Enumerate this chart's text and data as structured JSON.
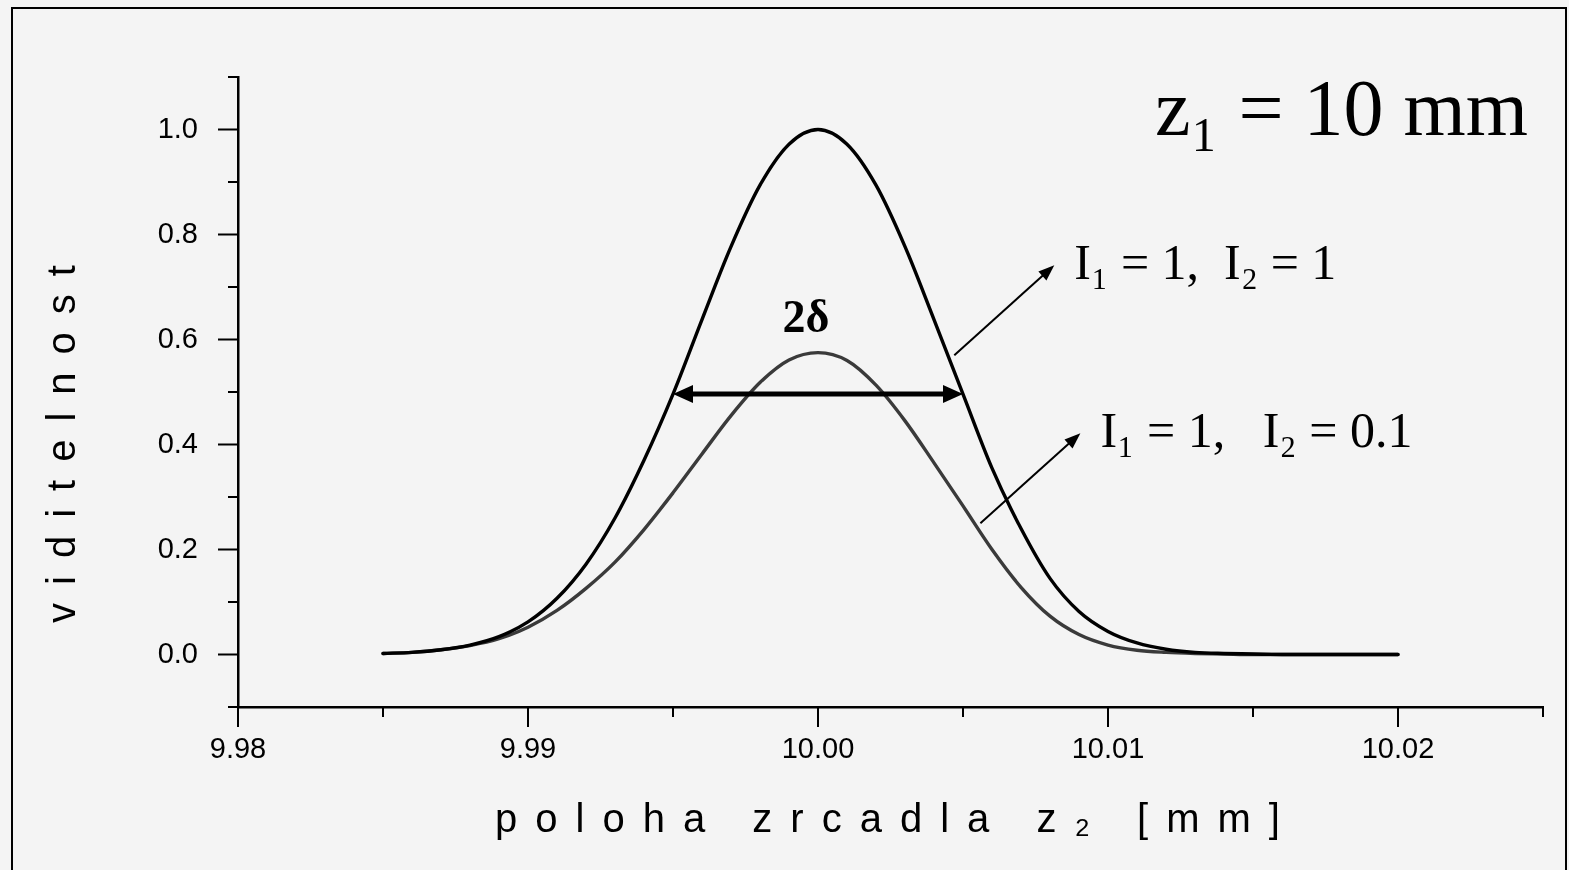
{
  "chart_data": {
    "type": "line",
    "xlabel": "poloha zrcadla z₂ [mm]",
    "ylabel": "viditelnost",
    "x": [
      9.985,
      9.986,
      9.987,
      9.988,
      9.989,
      9.99,
      9.991,
      9.992,
      9.993,
      9.994,
      9.995,
      9.996,
      9.997,
      9.998,
      9.999,
      10,
      10.001,
      10.002,
      10.003,
      10.004,
      10.005,
      10.006,
      10.007,
      10.008,
      10.009,
      10.01,
      10.011,
      10.012,
      10.013,
      10.014,
      10.015,
      10.016,
      10.017,
      10.018,
      10.019,
      10.02
    ],
    "series": [
      {
        "color": "#000000",
        "values": [
          0.002,
          0.004,
          0.009,
          0.018,
          0.034,
          0.062,
          0.107,
          0.172,
          0.26,
          0.37,
          0.496,
          0.638,
          0.777,
          0.894,
          0.972,
          1,
          0.972,
          0.894,
          0.777,
          0.638,
          0.496,
          0.355,
          0.24,
          0.145,
          0.082,
          0.044,
          0.022,
          0.01,
          0.004,
          0.002,
          0.001,
          0,
          0,
          0,
          0,
          0
        ]
      },
      {
        "color": "#3a3a3a",
        "values": [
          0.002,
          0.004,
          0.009,
          0.017,
          0.03,
          0.052,
          0.084,
          0.126,
          0.176,
          0.238,
          0.308,
          0.382,
          0.455,
          0.518,
          0.561,
          0.575,
          0.56,
          0.513,
          0.445,
          0.365,
          0.283,
          0.2,
          0.128,
          0.073,
          0.038,
          0.018,
          0.008,
          0.004,
          0.002,
          0.001,
          0,
          0,
          0,
          0,
          0,
          0
        ]
      }
    ],
    "xlim": [
      9.98,
      10.025
    ],
    "ylim": [
      -0.1,
      1.1
    ],
    "xticks": [
      9.98,
      {
        "value": 9.985,
        "label": null
      },
      9.99,
      {
        "value": 9.995,
        "label": null
      },
      {
        "value": 10,
        "label": "10.00"
      },
      {
        "value": 10.005,
        "label": null
      },
      10.01,
      {
        "value": 10.015,
        "label": null
      },
      10.02,
      {
        "value": 10.025,
        "label": null
      }
    ],
    "yticks": [
      {
        "value": -0.1,
        "label": null
      },
      {
        "value": 0,
        "label": "0.0"
      },
      {
        "value": 0.1,
        "label": null
      },
      0.2,
      {
        "value": 0.3,
        "label": null
      },
      0.4,
      {
        "value": 0.5,
        "label": null
      },
      0.6,
      {
        "value": 0.7,
        "label": null
      },
      0.8,
      {
        "value": 0.9,
        "label": null
      },
      {
        "value": 1,
        "label": "1.0"
      },
      {
        "value": 1.1,
        "label": null
      }
    ],
    "grid": false,
    "legend": false,
    "marker": "none",
    "line_style": "solid",
    "annotations": [
      "z₁ = 10 mm",
      {
        "text": "I₁ = 1,  I₂ = 1",
        "x": 10.0047,
        "y": 0.57
      },
      {
        "text": "I₁ = 1,   I₂ = 0.1",
        "x": 10.0056,
        "y": 0.25
      },
      {
        "text": "2δ",
        "x": 9.995,
        "y": 0.496
      }
    ]
  }
}
